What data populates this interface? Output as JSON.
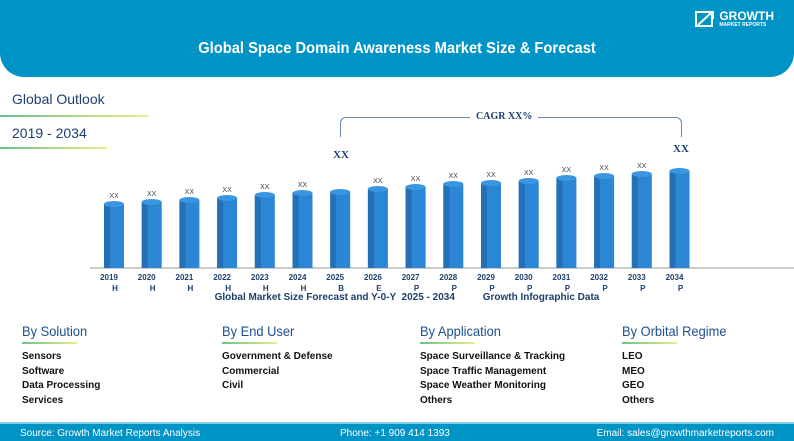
{
  "header": {
    "title": "Global Space Domain Awareness Market Size & Forecast",
    "logo_big": "GROWTH",
    "logo_small": "MARKET REPORTS"
  },
  "side": {
    "outlook": "Global Outlook",
    "period": "2019 - 2034"
  },
  "cagr": {
    "label": "CAGR XX%",
    "start": "XX",
    "end": "XX"
  },
  "chart_data": {
    "type": "bar",
    "title": "",
    "caption": "Global Market Size Forecast and Y-0-Y  2025 - 2034          Growth Infographic Data",
    "categories": [
      "2019",
      "2020",
      "2021",
      "2022",
      "2023",
      "2024",
      "2025",
      "2026",
      "2027",
      "2028",
      "2029",
      "2030",
      "2031",
      "2032",
      "2033",
      "2034"
    ],
    "flags": [
      "H",
      "H",
      "H",
      "H",
      "H",
      "H",
      "B",
      "E",
      "P",
      "P",
      "P",
      "P",
      "P",
      "P",
      "P",
      "P"
    ],
    "data_labels": [
      "XX",
      "XX",
      "XX",
      "XX",
      "XX",
      "XX",
      "",
      "XX",
      "XX",
      "XX",
      "XX",
      "XX",
      "XX",
      "XX",
      "XX",
      ""
    ],
    "values": [
      64,
      66,
      68,
      70,
      73,
      75,
      76,
      79,
      81,
      84,
      85,
      87,
      90,
      92,
      94,
      97
    ],
    "bar_color": "#2b87d6"
  },
  "segments": [
    {
      "title": "By Solution",
      "items": [
        "Sensors",
        "Software",
        "Data Processing",
        "Services"
      ]
    },
    {
      "title": "By End User",
      "items": [
        "Government & Defense",
        "Commercial",
        "Civil"
      ]
    },
    {
      "title": "By Application",
      "items": [
        "Space Surveillance & Tracking",
        "Space Traffic Management",
        "Space Weather Monitoring",
        "Others"
      ]
    },
    {
      "title": "By Orbital Regime",
      "items": [
        "LEO",
        "MEO",
        "GEO",
        "Others"
      ]
    }
  ],
  "footer": {
    "source": "Source: Growth Market Reports Analysis",
    "phone": "Phone: +1 909 414 1393",
    "email": "Email: sales@growthmarketreports.com"
  }
}
